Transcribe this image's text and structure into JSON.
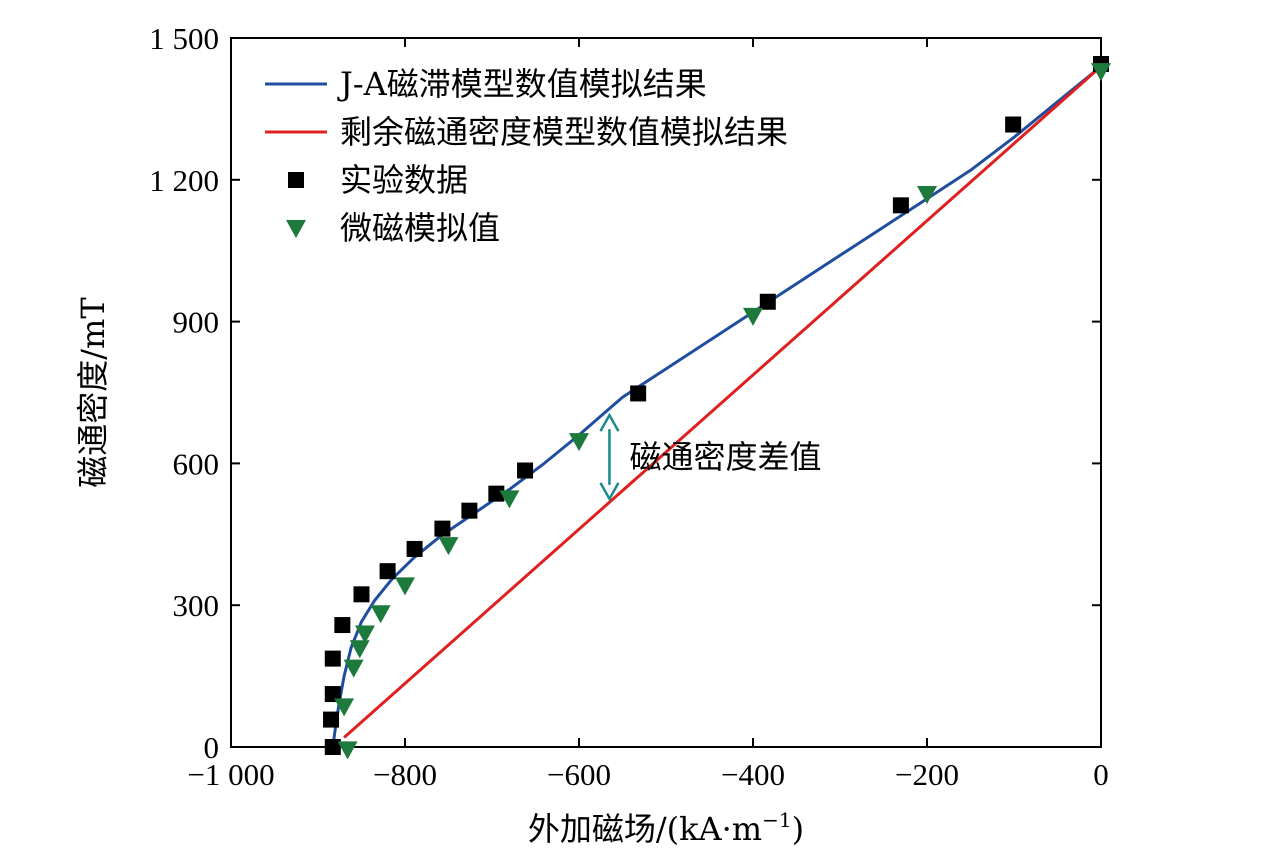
{
  "chart_data": {
    "type": "line",
    "xlabel": "外加磁场/(kA·m",
    "xlabel_sup": "−1",
    "xlabel_end": ")",
    "ylabel": "磁通密度/mT",
    "xlim": [
      -1000,
      0
    ],
    "ylim": [
      0,
      1500
    ],
    "xticks": [
      -1000,
      -800,
      -600,
      -400,
      -200,
      0
    ],
    "xtick_labels": [
      "−1 000",
      "−800",
      "−600",
      "−400",
      "−200",
      "0"
    ],
    "yticks": [
      0,
      300,
      600,
      900,
      1200,
      1500
    ],
    "ytick_labels": [
      "0",
      "300",
      "600",
      "900",
      "1 200",
      "1 500"
    ],
    "legend_position": "top-left",
    "series": [
      {
        "name": "J-A磁滞模型数值模拟结果",
        "kind": "line",
        "color": "#1f4e9e",
        "x": [
          -883,
          -880,
          -876,
          -870,
          -862,
          -850,
          -835,
          -815,
          -790,
          -760,
          -720,
          -680,
          -640,
          -600,
          -550,
          -500,
          -450,
          -400,
          -350,
          -300,
          -250,
          -200,
          -150,
          -100,
          -50,
          0
        ],
        "y": [
          0,
          40,
          90,
          150,
          210,
          265,
          310,
          355,
          400,
          445,
          495,
          545,
          600,
          660,
          740,
          800,
          860,
          920,
          980,
          1040,
          1100,
          1160,
          1220,
          1290,
          1365,
          1440
        ]
      },
      {
        "name": "剩余磁通密度模型数值模拟结果",
        "kind": "line",
        "color": "#e02020",
        "x": [
          -870,
          0
        ],
        "y": [
          20,
          1440
        ]
      },
      {
        "name": "实验数据",
        "kind": "square",
        "color": "#000000",
        "x": [
          -883,
          -885,
          -883,
          -883,
          -872,
          -850,
          -820,
          -789,
          -757,
          -726,
          -695,
          -662,
          -532,
          -383,
          -230,
          -101,
          0
        ],
        "y": [
          0,
          58,
          112,
          187,
          258,
          323,
          372,
          419,
          462,
          500,
          536,
          585,
          748,
          942,
          1146,
          1317,
          1445
        ]
      },
      {
        "name": "微磁模拟值",
        "kind": "triangle-down",
        "color": "#1e7a3c",
        "x": [
          -866,
          -870,
          -859,
          -852,
          -846,
          -828,
          -800,
          -750,
          -680,
          -600,
          -400,
          -200,
          0
        ],
        "y": [
          -5,
          86,
          168,
          209,
          240,
          283,
          342,
          427,
          526,
          647,
          912,
          1170,
          1430
        ]
      }
    ],
    "annotation": {
      "text": "磁通密度差值",
      "x": -565,
      "y_top": 702,
      "y_bottom": 525,
      "color": "#1a8a8a"
    }
  }
}
